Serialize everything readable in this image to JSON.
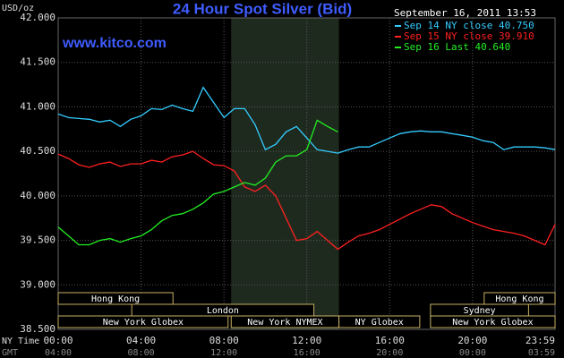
{
  "chart_data": {
    "type": "line",
    "title": "24 Hour Spot Silver (Bid)",
    "subtitle": "www.kitco.com",
    "timestamp": "September 16, 2011 13:53",
    "ylabel": "USD/oz",
    "xlabel": "NY Time",
    "x2label": "GMT",
    "x": [
      0,
      0.5,
      1,
      1.5,
      2,
      2.5,
      3,
      3.5,
      4,
      4.5,
      5,
      5.5,
      6,
      6.5,
      7,
      7.5,
      8,
      8.5,
      9,
      9.5,
      10,
      10.5,
      11,
      11.5,
      12,
      12.5,
      13,
      13.5,
      14,
      14.5,
      15,
      15.5,
      16,
      16.5,
      17,
      17.5,
      18,
      18.5,
      19,
      19.5,
      20,
      20.5,
      21,
      21.5,
      22,
      22.5,
      23,
      23.5,
      23.98
    ],
    "series": [
      {
        "name": "Sep 14 NY close 40.750",
        "color": "#33ccff",
        "values": [
          40.92,
          40.88,
          40.87,
          40.86,
          40.83,
          40.85,
          40.78,
          40.86,
          40.9,
          40.98,
          40.97,
          41.02,
          40.98,
          40.95,
          41.22,
          41.05,
          40.88,
          40.98,
          40.98,
          40.8,
          40.52,
          40.58,
          40.72,
          40.78,
          40.65,
          40.52,
          40.5,
          40.48,
          40.52,
          40.55,
          40.55,
          40.6,
          40.65,
          40.7,
          40.72,
          40.73,
          40.72,
          40.72,
          40.7,
          40.68,
          40.66,
          40.62,
          40.6,
          40.52,
          40.55,
          40.55,
          40.55,
          40.54,
          40.52
        ]
      },
      {
        "name": "Sep 15 NY close 39.910",
        "color": "#ff2020",
        "values": [
          40.47,
          40.42,
          40.35,
          40.32,
          40.36,
          40.38,
          40.33,
          40.36,
          40.36,
          40.4,
          40.38,
          40.44,
          40.46,
          40.5,
          40.42,
          40.35,
          40.34,
          40.28,
          40.1,
          40.05,
          40.12,
          40.0,
          39.75,
          39.5,
          39.52,
          39.6,
          39.5,
          39.4,
          39.48,
          39.55,
          39.58,
          39.62,
          39.68,
          39.74,
          39.8,
          39.85,
          39.9,
          39.88,
          39.8,
          39.75,
          39.7,
          39.66,
          39.62,
          39.6,
          39.58,
          39.55,
          39.5,
          39.45,
          39.68
        ]
      },
      {
        "name": "Sep 16 Last 40.640",
        "color": "#22ee22",
        "values": [
          39.65,
          39.55,
          39.45,
          39.45,
          39.5,
          39.52,
          39.48,
          39.52,
          39.55,
          39.62,
          39.72,
          39.78,
          39.8,
          39.85,
          39.92,
          40.02,
          40.05,
          40.1,
          40.15,
          40.12,
          40.2,
          40.38,
          40.45,
          40.45,
          40.52,
          40.85,
          40.78,
          40.72,
          null,
          null,
          null,
          null,
          null,
          null,
          null,
          null,
          null,
          null,
          null,
          null,
          null,
          null,
          null,
          null,
          null,
          null,
          null,
          null,
          null
        ]
      }
    ],
    "xlim": [
      0,
      23.98
    ],
    "ylim": [
      38.5,
      42
    ],
    "xticks": [
      {
        "value": 0,
        "label": "00:00"
      },
      {
        "value": 4,
        "label": "04:00"
      },
      {
        "value": 8,
        "label": "08:00"
      },
      {
        "value": 12,
        "label": "12:00"
      },
      {
        "value": 16,
        "label": "16:00"
      },
      {
        "value": 20,
        "label": "20:00"
      },
      {
        "value": 23.98,
        "label": "23:59"
      }
    ],
    "x2ticks": [
      {
        "value": 0,
        "label": "04:00"
      },
      {
        "value": 4,
        "label": "08:00"
      },
      {
        "value": 8,
        "label": "12:00"
      },
      {
        "value": 12,
        "label": "16:00"
      },
      {
        "value": 16,
        "label": "20:00"
      },
      {
        "value": 20,
        "label": "00:00"
      },
      {
        "value": 23.98,
        "label": "03:59"
      }
    ],
    "yticks": [
      {
        "value": 38.5,
        "label": "38.500"
      },
      {
        "value": 39,
        "label": "39.000"
      },
      {
        "value": 39.5,
        "label": "39.500"
      },
      {
        "value": 40,
        "label": "40.000"
      },
      {
        "value": 40.5,
        "label": "40.500"
      },
      {
        "value": 41,
        "label": "41.000"
      },
      {
        "value": 41.5,
        "label": "41.500"
      },
      {
        "value": 42,
        "label": "42.000"
      }
    ],
    "grid": true,
    "shaded": [
      8.35,
      13.55
    ],
    "sessions": [
      {
        "label": "Hong Kong",
        "row": 0,
        "start": 0,
        "end": 5.54
      },
      {
        "label": "Hong Kong",
        "row": 0,
        "start": 20.56,
        "end": 23.98
      },
      {
        "label": "London",
        "row": 1,
        "start": 3.55,
        "end": 12.34
      },
      {
        "label": "Sydney",
        "row": 1,
        "start": 17.97,
        "end": 22.7
      },
      {
        "label": "New York Globex",
        "row": 2,
        "start": 0,
        "end": 8.2
      },
      {
        "label": "New York NYMEX",
        "row": 2,
        "start": 8.35,
        "end": 13.55
      },
      {
        "label": "NY Globex",
        "row": 2,
        "start": 13.55,
        "end": 17.45
      },
      {
        "label": "New York Globex",
        "row": 2,
        "start": 17.97,
        "end": 23.98
      }
    ]
  }
}
